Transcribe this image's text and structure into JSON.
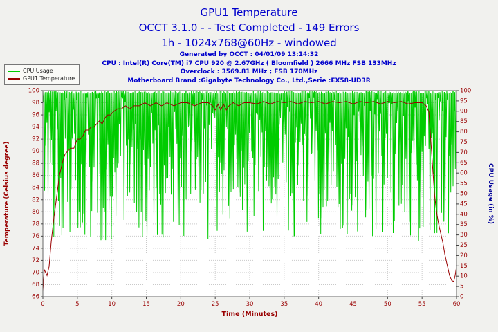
{
  "header": {
    "title": "GPU1 Temperature",
    "subtitle": "OCCT 3.1.0 -  - Test Completed - 149 Errors",
    "subtitle2": "1h - 1024x768@60Hz - windowed",
    "info_lines": [
      "Generated by OCCT : 04/01/09 13:14:32",
      "CPU : Intel(R) Core(TM) i7 CPU 920 @ 2.67GHz ( Bloomfield ) 2666 MHz FSB 133MHz",
      "Overclock : 3569.81 MHz ; FSB 170MHz",
      "Motherboard Brand :Gigabyte Technology Co., Ltd.,Serie :EX58-UD3R"
    ]
  },
  "legend": {
    "items": [
      {
        "label": "CPU Usage",
        "color": "#00cc00"
      },
      {
        "label": "GPU1 Temperature",
        "color": "#990000"
      }
    ]
  },
  "colors": {
    "header_blue": "#0000cc",
    "maroon": "#990000",
    "right_axis_blue": "#000099",
    "green": "#00cc00",
    "grid": "#c9c9c9",
    "plot_bg": "#ffffff",
    "plot_border": "#666666"
  },
  "chart_data": {
    "type": "line",
    "title": "GPU1 Temperature",
    "xlabel": "Time (Minutes)",
    "ylabel_left": "Temperature (Celsius degree)",
    "ylabel_right": "CPU Usage (in %)",
    "x_range": [
      0,
      60
    ],
    "x_step": 5,
    "y_left_range": [
      66,
      100
    ],
    "y_left_step": 2,
    "y_right_range": [
      0,
      100
    ],
    "y_right_step": 5,
    "grid": true,
    "legend_position": "top-left",
    "series": [
      {
        "name": "CPU Usage",
        "axis": "right",
        "color": "#00cc00",
        "description": "Very noisy trace: usage sits near 100% with constant downward spikes of varying depth (mostly to 30-95%) for the whole 0-60 min run",
        "noise": {
          "seed": 7,
          "samples": 720,
          "base": 100,
          "top_jitter": 1.5,
          "dip_min": 3,
          "dip_max": 73,
          "dip_power": 1.2
        }
      },
      {
        "name": "GPU1 Temperature",
        "axis": "left",
        "color": "#990000",
        "points": [
          [
            0,
            67
          ],
          [
            0.2,
            70.5
          ],
          [
            0.4,
            70
          ],
          [
            0.6,
            69.5
          ],
          [
            0.9,
            71
          ],
          [
            1.2,
            75
          ],
          [
            1.6,
            79
          ],
          [
            2,
            82.5
          ],
          [
            2.4,
            86
          ],
          [
            2.8,
            88
          ],
          [
            3.2,
            89.5
          ],
          [
            3.6,
            90
          ],
          [
            4,
            90.5
          ],
          [
            4.5,
            90.5
          ],
          [
            5,
            92
          ],
          [
            5.4,
            92
          ],
          [
            5.8,
            92.5
          ],
          [
            6.2,
            93.5
          ],
          [
            6.6,
            93.5
          ],
          [
            7,
            94
          ],
          [
            7.4,
            94
          ],
          [
            7.8,
            94.5
          ],
          [
            8.2,
            95
          ],
          [
            8.6,
            94.5
          ],
          [
            9,
            95.5
          ],
          [
            9.4,
            96
          ],
          [
            9.8,
            96
          ],
          [
            10.2,
            96.5
          ],
          [
            10.8,
            97
          ],
          [
            11.4,
            97
          ],
          [
            12,
            97.5
          ],
          [
            12.6,
            97
          ],
          [
            13.2,
            97.5
          ],
          [
            14,
            97.5
          ],
          [
            14.8,
            98
          ],
          [
            15.6,
            97.5
          ],
          [
            16.4,
            98
          ],
          [
            17.2,
            97.5
          ],
          [
            18,
            98
          ],
          [
            19,
            97.5
          ],
          [
            20,
            98
          ],
          [
            21,
            98
          ],
          [
            22,
            97.5
          ],
          [
            23,
            98
          ],
          [
            24,
            98
          ],
          [
            24.6,
            97.5
          ],
          [
            25,
            96.8
          ],
          [
            25.4,
            97.8
          ],
          [
            25.8,
            96.8
          ],
          [
            26.2,
            97.8
          ],
          [
            26.6,
            96.8
          ],
          [
            27,
            97.5
          ],
          [
            27.6,
            98
          ],
          [
            28.4,
            97.5
          ],
          [
            29.2,
            98
          ],
          [
            30,
            98
          ],
          [
            31,
            97.8
          ],
          [
            32,
            98.2
          ],
          [
            33,
            97.8
          ],
          [
            34,
            98.2
          ],
          [
            35,
            98
          ],
          [
            36,
            98.2
          ],
          [
            37,
            97.8
          ],
          [
            38,
            98.2
          ],
          [
            39,
            98
          ],
          [
            40,
            98.2
          ],
          [
            41,
            97.8
          ],
          [
            42,
            98.2
          ],
          [
            43,
            98
          ],
          [
            44,
            98.2
          ],
          [
            45,
            97.8
          ],
          [
            46,
            98.2
          ],
          [
            47,
            98
          ],
          [
            48,
            98.2
          ],
          [
            49,
            97.8
          ],
          [
            50,
            98.2
          ],
          [
            51,
            98
          ],
          [
            52,
            98.2
          ],
          [
            53,
            97.8
          ],
          [
            54,
            98
          ],
          [
            55,
            98
          ],
          [
            55.6,
            97.5
          ],
          [
            56,
            96.5
          ],
          [
            56.2,
            93
          ],
          [
            56.5,
            88
          ],
          [
            56.8,
            83
          ],
          [
            57.1,
            80
          ],
          [
            57.4,
            78
          ],
          [
            57.7,
            76.5
          ],
          [
            58,
            75
          ],
          [
            58.3,
            73
          ],
          [
            58.6,
            71.5
          ],
          [
            59,
            69.5
          ],
          [
            59.3,
            68.7
          ],
          [
            59.6,
            68.5
          ],
          [
            59.8,
            69.5
          ],
          [
            60,
            71
          ]
        ]
      }
    ]
  }
}
